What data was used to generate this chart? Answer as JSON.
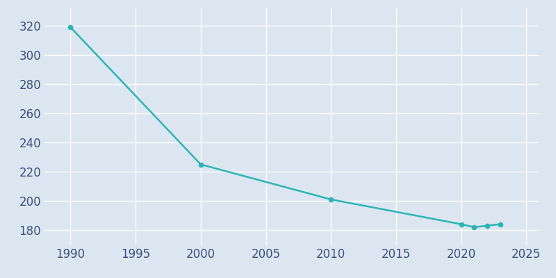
{
  "years": [
    1990,
    2000,
    2010,
    2020,
    2021,
    2022,
    2023
  ],
  "population": [
    319,
    225,
    201,
    184,
    182,
    183,
    184
  ],
  "line_color": "#2ab5b5",
  "marker_color": "#2ab5b5",
  "background_color": "#dce6f1",
  "grid_color": "#ffffff",
  "xlim": [
    1988,
    2026
  ],
  "ylim": [
    170,
    332
  ],
  "yticks": [
    180,
    200,
    220,
    240,
    260,
    280,
    300,
    320
  ],
  "xticks": [
    1990,
    1995,
    2000,
    2005,
    2010,
    2015,
    2020,
    2025
  ],
  "tick_label_color": "#3d4f7c",
  "linewidth": 1.8,
  "markersize": 4.5,
  "tick_fontsize": 12
}
